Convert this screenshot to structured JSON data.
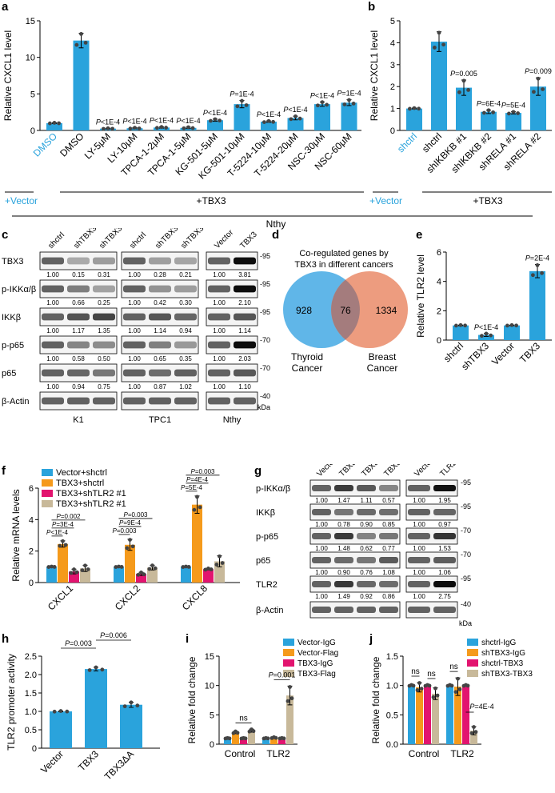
{
  "colors": {
    "blue": "#2aa3dc",
    "orange": "#f59a1b",
    "magenta": "#e2146f",
    "tan": "#c8b99a",
    "venn_blue": "#4faee6",
    "venn_salmon": "#ea8b69"
  },
  "panel_labels": {
    "a": "a",
    "b": "b",
    "c": "c",
    "d": "d",
    "e": "e",
    "f": "f",
    "g": "g",
    "h": "h",
    "i": "i",
    "j": "j"
  },
  "panel_a": {
    "ylabel": "Relative CXCL1 level",
    "yticks": [
      "0",
      "5",
      "10",
      "15"
    ],
    "categories": [
      "DMSO",
      "DMSO",
      "LY-5μM",
      "LY-10μM",
      "TPCA-1-2μM",
      "TPCA-1-5μM",
      "KG-501-5μM",
      "KG-501-10μM",
      "T-5224-10μM",
      "T-5224-20μM",
      "NSC-30μM",
      "NSC-60μM"
    ],
    "pvalues": [
      "",
      "",
      "P<1E-4",
      "P<1E-4",
      "P<1E-4",
      "P<1E-4",
      "P<1E-4",
      "P=1E-4",
      "P<1E-4",
      "P<1E-4",
      "P<1E-4",
      "P=1E-4"
    ],
    "group_vector": "+Vector",
    "group_tbx3": "+TBX3"
  },
  "panel_b": {
    "ylabel": "Relative CXCL1 level",
    "yticks": [
      "0",
      "1",
      "2",
      "3",
      "4",
      "5"
    ],
    "categories": [
      "shctrl",
      "shctrl",
      "shIKBKB #1",
      "shIKBKB #2",
      "shRELA #1",
      "shRELA #2"
    ],
    "pvalues": [
      "",
      "",
      "P=0.005",
      "P=6E-4",
      "P=5E-4",
      "P=0.009"
    ],
    "group_vector": "+Vector",
    "group_tbx3": "+TBX3"
  },
  "nthy_label": "Nthy",
  "panel_c": {
    "rows": [
      "TBX3",
      "p-IKKα/β",
      "IKKβ",
      "p-p65",
      "p65",
      "β-Actin"
    ],
    "lanes_k1": [
      "shctrl",
      "shTBX3 #1",
      "shTBX3 #2"
    ],
    "lanes_tpc1": [
      "shctrl",
      "shTBX3 #1",
      "shTBX3 #2"
    ],
    "lanes_nthy": [
      "Vector",
      "TBX3"
    ],
    "values": [
      [
        "1.00",
        "0.15",
        "0.31",
        "1.00",
        "0.28",
        "0.21",
        "1.00",
        "3.81"
      ],
      [
        "1.00",
        "0.66",
        "0.25",
        "1.00",
        "0.42",
        "0.30",
        "1.00",
        "2.10"
      ],
      [
        "1.00",
        "1.17",
        "1.35",
        "1.00",
        "1.14",
        "0.94",
        "1.00",
        "1.14"
      ],
      [
        "1.00",
        "0.58",
        "0.50",
        "1.00",
        "0.65",
        "0.35",
        "1.00",
        "2.03"
      ],
      [
        "1.00",
        "0.94",
        "0.75",
        "1.00",
        "0.87",
        "1.02",
        "1.00",
        "1.10"
      ]
    ],
    "cell_lines": [
      "K1",
      "TPC1",
      "Nthy"
    ],
    "mw": [
      "95",
      "95",
      "95",
      "70",
      "70",
      "40"
    ],
    "kda": "kDa"
  },
  "panel_d": {
    "title_line1": "Co-regulated genes by",
    "title_line2": "TBX3 in different cancers",
    "left": "928",
    "overlap": "76",
    "right": "1334",
    "left_label1": "Thyroid",
    "left_label2": "Cancer",
    "right_label1": "Breast",
    "right_label2": "Cancer"
  },
  "panel_e": {
    "ylabel": "Relative TLR2 level",
    "yticks": [
      "0",
      "2",
      "4",
      "6"
    ],
    "categories": [
      "shctrl",
      "shTBX3",
      "Vector",
      "TBX3"
    ],
    "pvalues": [
      "",
      "P<1E-4",
      "",
      "P=2E-4"
    ]
  },
  "panel_f": {
    "ylabel": "Relative mRNA levels",
    "yticks": [
      "0",
      "2",
      "4",
      "6"
    ],
    "legend": [
      "Vector+shctrl",
      "TBX3+shctrl",
      "TBX3+shTLR2 #1",
      "TBX3+shTLR2 #1"
    ],
    "categories": [
      "CXCL1",
      "CXCL2",
      "CXCL8"
    ],
    "pvals": [
      [
        "P<1E-4",
        "P=3E-4",
        "P=0.002"
      ],
      [
        "P=0.003",
        "P=9E-4",
        "P=0.003"
      ],
      [
        "P=5E-4",
        "P=4E-4",
        "P=0.003"
      ]
    ]
  },
  "panel_g": {
    "lanes_left": [
      "Vector +shctrl",
      "TBX3 +shctrl",
      "TBX3 +shTLR2 #1",
      "TBX3 +shTLR2 #2"
    ],
    "lanes_right": [
      "Vector",
      "TLR2"
    ],
    "rows": [
      "p-IKKα/β",
      "IKKβ",
      "p-p65",
      "p65",
      "TLR2",
      "β-Actin"
    ],
    "values": [
      [
        "1.00",
        "1.47",
        "1.11",
        "0.57",
        "1.00",
        "1.95"
      ],
      [
        "1.00",
        "0.78",
        "0.90",
        "0.85",
        "1.00",
        "0.97"
      ],
      [
        "1.00",
        "1.48",
        "0.62",
        "0.77",
        "1.00",
        "1.53"
      ],
      [
        "1.00",
        "0.90",
        "0.76",
        "1.08",
        "1.00",
        "1.06"
      ],
      [
        "1.00",
        "1.49",
        "0.92",
        "0.86",
        "1.00",
        "2.75"
      ]
    ],
    "mw": [
      "95",
      "95",
      "70",
      "70",
      "95",
      "40"
    ],
    "kda": "kDa"
  },
  "panel_h": {
    "ylabel": "TLR2 promoter activity",
    "yticks": [
      "0",
      "0.5",
      "1.0",
      "1.5",
      "2.0",
      "2.5"
    ],
    "categories": [
      "Vector",
      "TBX3",
      "TBX3ΔA"
    ],
    "p1": "P=0.003",
    "p2": "P=0.006"
  },
  "panel_i": {
    "ylabel": "Relative fold change",
    "yticks": [
      "0",
      "5",
      "10",
      "15"
    ],
    "legend": [
      "Vector-IgG",
      "Vector-Flag",
      "TBX3-IgG",
      "TBX3-Flag"
    ],
    "categories": [
      "Control",
      "TLR2"
    ],
    "ns": "ns",
    "p": "P=0.001"
  },
  "panel_j": {
    "ylabel": "Relative fold change",
    "yticks": [
      "0.0",
      "0.5",
      "1.0",
      "1.5"
    ],
    "legend": [
      "shctrl-IgG",
      "shTBX3-IgG",
      "shctrl-TBX3",
      "shTBX3-TBX3"
    ],
    "categories": [
      "Control",
      "TLR2"
    ],
    "ns": "ns",
    "p": "P=4E-4"
  },
  "chart_data": [
    {
      "type": "bar",
      "panel": "a",
      "ylabel": "Relative CXCL1 level",
      "ylim": [
        0,
        15
      ],
      "categories": [
        "DMSO",
        "DMSO",
        "LY-5μM",
        "LY-10μM",
        "TPCA-1-2μM",
        "TPCA-1-5μM",
        "KG-501-5μM",
        "KG-501-10μM",
        "T-5224-10μM",
        "T-5224-20μM",
        "NSC-30μM",
        "NSC-60μM"
      ],
      "values": [
        1.0,
        12.3,
        0.25,
        0.3,
        0.4,
        0.35,
        1.4,
        3.6,
        1.2,
        1.7,
        3.6,
        3.8
      ],
      "errors": [
        0.05,
        1.0,
        0.05,
        0.08,
        0.08,
        0.1,
        0.15,
        0.5,
        0.1,
        0.25,
        0.3,
        0.4
      ]
    },
    {
      "type": "bar",
      "panel": "b",
      "ylabel": "Relative CXCL1 level",
      "ylim": [
        0,
        5
      ],
      "categories": [
        "shctrl",
        "shctrl",
        "shIKBKB #1",
        "shIKBKB #2",
        "shRELA #1",
        "shRELA #2"
      ],
      "values": [
        1.0,
        4.05,
        1.95,
        0.85,
        0.8,
        2.0
      ],
      "errors": [
        0.02,
        0.45,
        0.35,
        0.08,
        0.05,
        0.4
      ]
    },
    {
      "type": "bar",
      "panel": "e",
      "ylabel": "Relative TLR2 level",
      "ylim": [
        0,
        6
      ],
      "categories": [
        "shctrl",
        "shTBX3",
        "Vector",
        "TBX3"
      ],
      "values": [
        1.0,
        0.35,
        1.0,
        4.7
      ],
      "errors": [
        0.02,
        0.1,
        0.02,
        0.45
      ]
    },
    {
      "type": "bar",
      "panel": "f",
      "ylabel": "Relative mRNA levels",
      "ylim": [
        0,
        6
      ],
      "categories": [
        "CXCL1",
        "CXCL2",
        "CXCL8"
      ],
      "series": [
        {
          "name": "Vector+shctrl",
          "values": [
            1.0,
            1.0,
            1.0
          ],
          "errors": [
            0.02,
            0.02,
            0.02
          ]
        },
        {
          "name": "TBX3+shctrl",
          "values": [
            2.45,
            2.4,
            4.95
          ],
          "errors": [
            0.2,
            0.35,
            0.55
          ]
        },
        {
          "name": "TBX3+shTLR2 #1",
          "values": [
            0.7,
            0.55,
            0.85
          ],
          "errors": [
            0.15,
            0.1,
            0.05
          ]
        },
        {
          "name": "TBX3+shTLR2 #1",
          "values": [
            0.9,
            0.95,
            1.35
          ],
          "errors": [
            0.2,
            0.15,
            0.35
          ]
        }
      ]
    },
    {
      "type": "bar",
      "panel": "h",
      "ylabel": "TLR2 promoter activity",
      "ylim": [
        0,
        2.5
      ],
      "categories": [
        "Vector",
        "TBX3",
        "TBX3ΔA"
      ],
      "values": [
        1.0,
        2.15,
        1.18
      ],
      "errors": [
        0.01,
        0.05,
        0.07
      ]
    },
    {
      "type": "bar",
      "panel": "i",
      "ylabel": "Relative fold change",
      "ylim": [
        0,
        15
      ],
      "categories": [
        "Control",
        "TLR2"
      ],
      "series": [
        {
          "name": "Vector-IgG",
          "values": [
            1.0,
            1.0
          ],
          "errors": [
            0.05,
            0.05
          ]
        },
        {
          "name": "Vector-Flag",
          "values": [
            2.0,
            1.1
          ],
          "errors": [
            0.2,
            0.1
          ]
        },
        {
          "name": "TBX3-IgG",
          "values": [
            1.0,
            1.0
          ],
          "errors": [
            0.05,
            0.05
          ]
        },
        {
          "name": "TBX3-Flag",
          "values": [
            2.3,
            8.3
          ],
          "errors": [
            0.25,
            1.6
          ]
        }
      ]
    },
    {
      "type": "bar",
      "panel": "j",
      "ylabel": "Relative fold change",
      "ylim": [
        0,
        1.5
      ],
      "categories": [
        "Control",
        "TLR2"
      ],
      "series": [
        {
          "name": "shctrl-IgG",
          "values": [
            1.0,
            1.0
          ],
          "errors": [
            0.01,
            0.01
          ]
        },
        {
          "name": "shTBX3-IgG",
          "values": [
            0.97,
            0.98
          ],
          "errors": [
            0.08,
            0.15
          ]
        },
        {
          "name": "shctrl-TBX3",
          "values": [
            1.0,
            1.0
          ],
          "errors": [
            0.01,
            0.01
          ]
        },
        {
          "name": "shTBX3-TBX3",
          "values": [
            0.86,
            0.23
          ],
          "errors": [
            0.1,
            0.07
          ]
        }
      ]
    }
  ]
}
